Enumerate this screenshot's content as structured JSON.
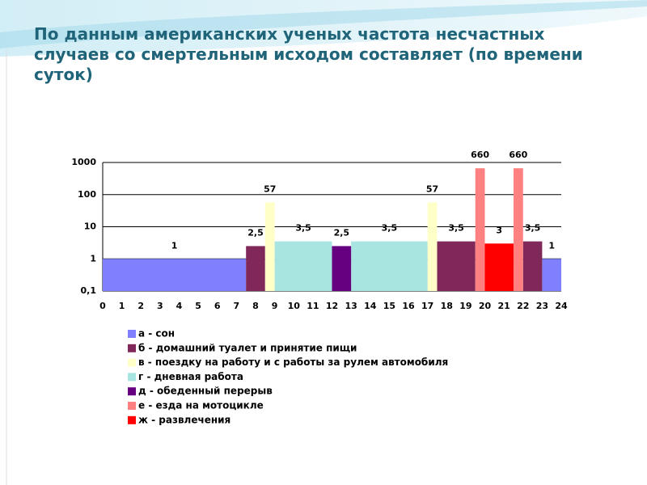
{
  "chart_data": {
    "type": "bar",
    "title": "По данным американских ученых частота несчастных случаев со смертельным исходом составляет (по времени суток)",
    "xlim": [
      0,
      24
    ],
    "xticks": [
      0,
      1,
      2,
      3,
      4,
      5,
      6,
      7,
      8,
      9,
      10,
      11,
      12,
      13,
      14,
      15,
      16,
      17,
      18,
      19,
      20,
      21,
      22,
      23,
      24
    ],
    "ylim": [
      0.1,
      1000
    ],
    "log_y": true,
    "yticks": [
      {
        "value": 0.1,
        "label": "0,1"
      },
      1,
      10,
      100,
      1000
    ],
    "grid": true,
    "series": [
      {
        "name": "а - сон",
        "color": "#8080ff",
        "intervals": [
          [
            0,
            7.5
          ],
          [
            23,
            24
          ]
        ],
        "values": [
          1,
          1
        ]
      },
      {
        "name": "б - домашний туалет и принятие пищи",
        "color": "#80285a",
        "intervals": [
          [
            7.5,
            8.5
          ],
          [
            17.5,
            19.5
          ],
          [
            22,
            23
          ]
        ],
        "values": [
          2.5,
          3.5,
          3.5
        ],
        "value_labels": [
          "2,5",
          "3,5",
          "3,5"
        ]
      },
      {
        "name": "в - поездку на работу и с работы за рулем автомобиля",
        "color": "#ffffc8",
        "intervals": [
          [
            8.5,
            9
          ],
          [
            17,
            17.5
          ]
        ],
        "values": [
          57,
          57
        ]
      },
      {
        "name": "г - дневная работа",
        "color": "#a8e4e0",
        "intervals": [
          [
            9,
            12
          ],
          [
            13,
            17
          ]
        ],
        "values": [
          3.5,
          3.5
        ],
        "value_labels": [
          "3,5",
          "3,5"
        ]
      },
      {
        "name": "д - обеденный перерыв",
        "color": "#660080",
        "intervals": [
          [
            12,
            13
          ]
        ],
        "values": [
          2.5
        ],
        "value_labels": [
          "2,5"
        ]
      },
      {
        "name": "е - езда на мотоцикле",
        "color": "#ff8080",
        "intervals": [
          [
            19.5,
            20
          ],
          [
            21.5,
            22
          ]
        ],
        "values": [
          660,
          660
        ]
      },
      {
        "name": "ж - развлечения",
        "color": "#ff0000",
        "intervals": [
          [
            20,
            21.5
          ]
        ],
        "values": [
          3
        ]
      }
    ]
  }
}
